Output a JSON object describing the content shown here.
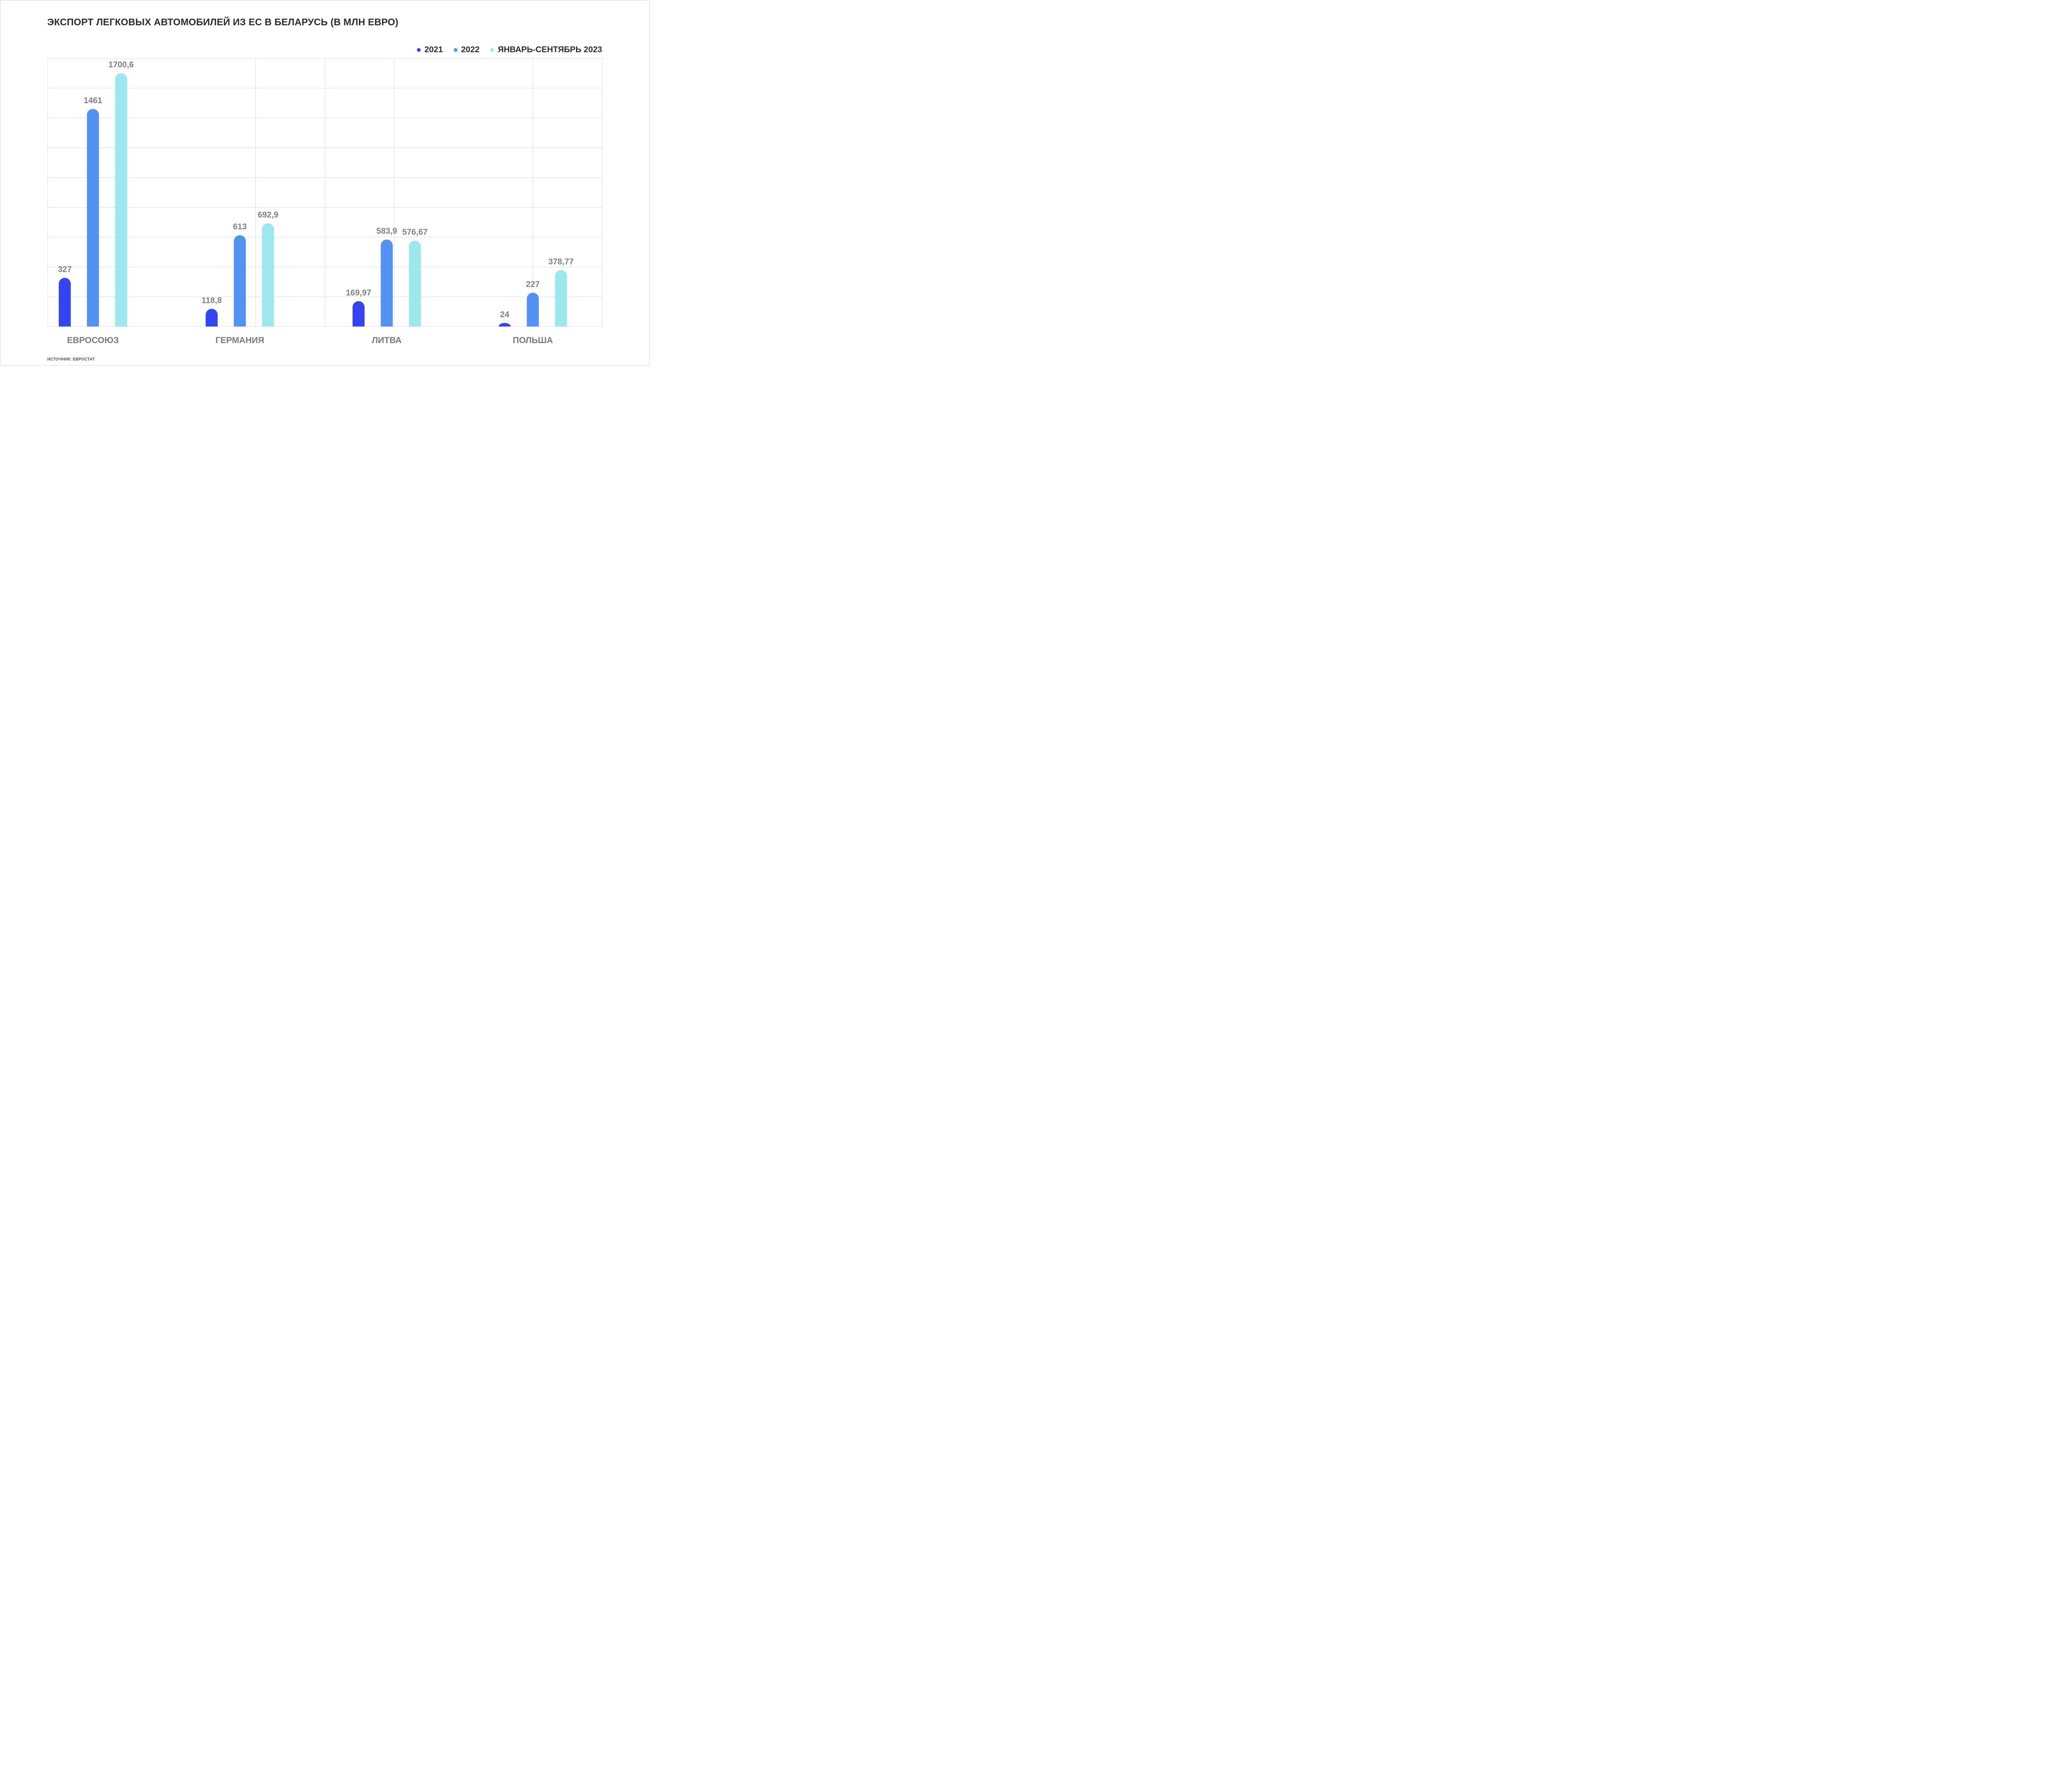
{
  "title": "ЭКСПОРТ ЛЕГКОВЫХ АВТОМОБИЛЕЙ ИЗ ЕС В БЕЛАРУСЬ (В МЛН ЕВРО)",
  "source": "ИСТОЧНИК: ЕВРОСТАТ",
  "colors": {
    "s2021": "#3344f0",
    "s2022": "#5392f2",
    "s2023": "#9de8ee",
    "grid": "#dcdcdc",
    "axis_text": "#7a7a7a",
    "label_text": "#808080"
  },
  "chart_data": {
    "type": "bar",
    "title": "ЭКСПОРТ ЛЕГКОВЫХ АВТОМОБИЛЕЙ ИЗ ЕС В БЕЛАРУСЬ (В МЛН ЕВРО)",
    "categories": [
      "ЕВРОСОЮЗ",
      "ГЕРМАНИЯ",
      "ЛИТВА",
      "ПОЛЬША"
    ],
    "series": [
      {
        "name": "2021",
        "values": [
          327,
          118.8,
          169.97,
          24
        ],
        "labels": [
          "327",
          "118,8",
          "169,97",
          "24"
        ]
      },
      {
        "name": "2022",
        "values": [
          1461,
          613,
          583.9,
          227
        ],
        "labels": [
          "1461",
          "613",
          "583,9",
          "227"
        ]
      },
      {
        "name": "ЯНВАРЬ-СЕНТЯБРЬ 2023",
        "values": [
          1700.6,
          692.9,
          576.67,
          378.77
        ],
        "labels": [
          "1700,6",
          "692,9",
          "576,67",
          "378,77"
        ]
      }
    ],
    "ylim": [
      0,
      1800
    ],
    "xlabel": "",
    "ylabel": "",
    "grid": true,
    "legend": "top-right"
  }
}
